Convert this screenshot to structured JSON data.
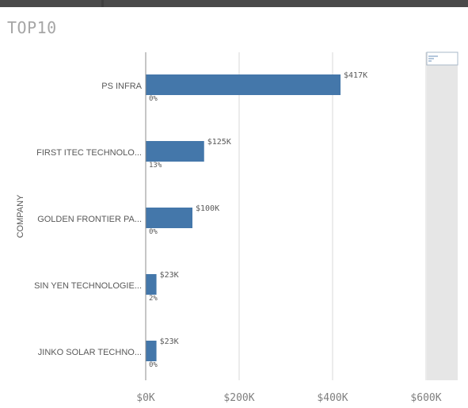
{
  "chart_data": {
    "type": "bar",
    "orientation": "horizontal",
    "title": "TOP10",
    "xlabel": "",
    "ylabel": "COMPANY",
    "categories": [
      "PS INFRA",
      "FIRST ITEC TECHNOLO...",
      "GOLDEN FRONTIER PA...",
      "SIN YEN TECHNOLOGIE...",
      "JINKO SOLAR TECHNO..."
    ],
    "values": [
      417,
      125,
      100,
      23,
      23
    ],
    "value_labels": [
      "$417K",
      "$125K",
      "$100K",
      "$23K",
      "$23K"
    ],
    "secondary_labels": [
      "0%",
      "13%",
      "0%",
      "2%",
      "0%"
    ],
    "xlim": [
      0,
      600
    ],
    "xticks": [
      0,
      200,
      400,
      600
    ],
    "xtick_labels": [
      "$0K",
      "$200K",
      "$400K",
      "$600K"
    ],
    "grid": true,
    "bar_color": "#4477aa",
    "scrollbar": true
  }
}
